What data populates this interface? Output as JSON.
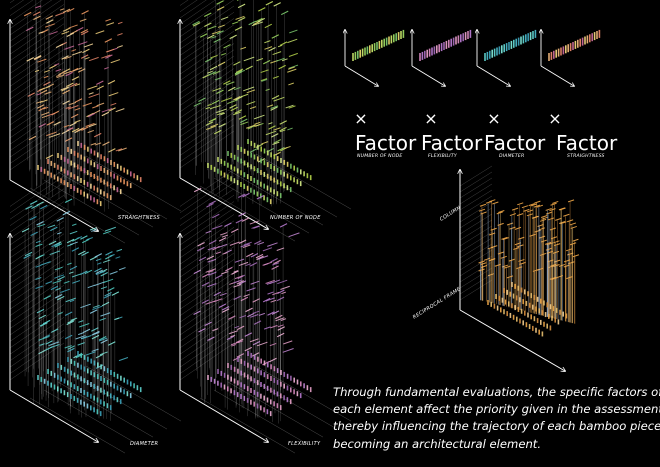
{
  "panels": [
    {
      "id": "straightness",
      "label": "STRAIGHTNESS",
      "colors": [
        "#f0b67a",
        "#e8876a",
        "#f2d27c",
        "#c96a9a",
        "#f19a62",
        "#ffe0a0"
      ]
    },
    {
      "id": "number-of-node",
      "label": "NUMBER OF NODE",
      "colors": [
        "#c9e46a",
        "#9ad65e",
        "#e6d86a",
        "#7cc96e",
        "#d9f08a",
        "#b5d44a"
      ]
    },
    {
      "id": "diameter",
      "label": "DIAMETER",
      "colors": [
        "#5fd3d0",
        "#48b6c8",
        "#7ee6d8",
        "#3aa0b8",
        "#8ad0e8",
        "#4ecbc0"
      ]
    },
    {
      "id": "flexibility",
      "label": "FLEXIBILITY",
      "colors": [
        "#d98ac0",
        "#b77ad0",
        "#e6a0c8",
        "#a46ab8",
        "#f0b0d6",
        "#c78ad8"
      ]
    }
  ],
  "factors": [
    {
      "title": "Factor",
      "subtitle": "NUMBER OF NODE",
      "colors": [
        "#c9e46a",
        "#9ad65e",
        "#7cc96e",
        "#e6d86a"
      ]
    },
    {
      "title": "Factor",
      "subtitle": "FLEXIBILITY",
      "colors": [
        "#d98ac0",
        "#b77ad0",
        "#a46ab8",
        "#e6a0c8"
      ]
    },
    {
      "title": "Factor",
      "subtitle": "DIAMETER",
      "colors": [
        "#5fd3d0",
        "#48b6c8",
        "#3aa0b8",
        "#7ee6d8"
      ]
    },
    {
      "title": "Factor",
      "subtitle": "STRAIGHTNESS",
      "colors": [
        "#f0b67a",
        "#e8876a",
        "#c96a9a",
        "#f2d27c"
      ]
    }
  ],
  "times_symbol": "×",
  "result": {
    "top_label": "COLUMN",
    "bottom_label": "RECIPROCAL FRAME",
    "colors": [
      "#f0a848",
      "#e8c070",
      "#d89040",
      "#f6d090",
      "#ffb860",
      "#c8d8f0",
      "#a8c8e8"
    ]
  },
  "caption_lines": [
    "Through fundamental evaluations, the specific factors of",
    "each element affect the priority given in the assessment,",
    "thereby influencing the trajectory of each bamboo piece in",
    "becoming an architectural element."
  ]
}
